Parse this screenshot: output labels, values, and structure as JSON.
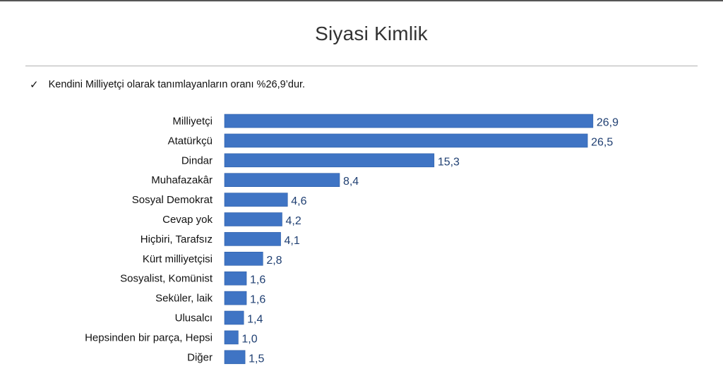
{
  "title": "Siyasi Kimlik",
  "note": {
    "check_icon": "check-mark-icon",
    "text": "Kendini Milliyetçi olarak tanımlayanların oranı %26,9’dur."
  },
  "colors": {
    "bar": "#3f74c4",
    "bar_edge": "#2f5fa8",
    "value_text": "#1f3f72"
  },
  "chart_data": {
    "type": "bar",
    "orientation": "horizontal",
    "title": "",
    "xlabel": "",
    "ylabel": "",
    "grid": false,
    "categories": [
      "Milliyetçi",
      "Atatürkçü",
      "Dindar",
      "Muhafazakâr",
      "Sosyal Demokrat",
      "Cevap yok",
      "Hiçbiri, Tarafsız",
      "Kürt milliyetçisi",
      "Sosyalist, Komünist",
      "Seküler, laik",
      "Ulusalcı",
      "Hepsinden bir parça, Hepsi",
      "Diğer"
    ],
    "values": [
      26.9,
      26.5,
      15.3,
      8.4,
      4.6,
      4.2,
      4.1,
      2.8,
      1.6,
      1.6,
      1.4,
      1.0,
      1.5
    ],
    "value_labels": [
      "26,9",
      "26,5",
      "15,3",
      "8,4",
      "4,6",
      "4,2",
      "4,1",
      "2,8",
      "1,6",
      "1,6",
      "1,4",
      "1,0",
      "1,5"
    ]
  }
}
